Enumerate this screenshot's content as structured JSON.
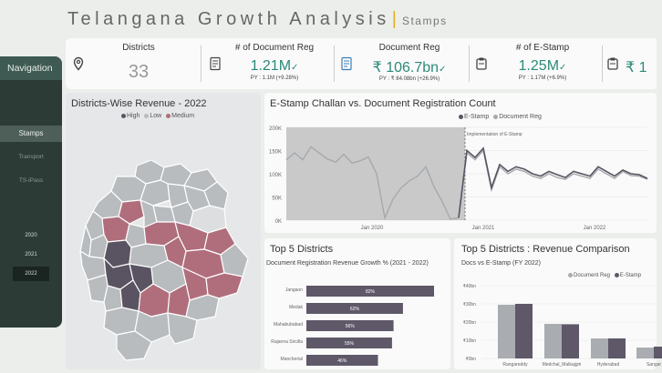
{
  "header": {
    "title": "Telangana Growth Analysis",
    "separator": "|",
    "subtitle": "Stamps"
  },
  "nav": {
    "heading": "Navigation",
    "items": [
      "Stamps",
      "Transport",
      "TS-iPass"
    ],
    "years": [
      "2020",
      "2021",
      "2022"
    ],
    "selected_year": "2022"
  },
  "kpis": [
    {
      "label": "Districts",
      "value": "33",
      "icon": "map-pin-icon"
    },
    {
      "label": "# of Document Reg",
      "value": "1.21M",
      "trend": "✓",
      "py": "PY : 1.1M (+9.28%)",
      "icon": "document-icon"
    },
    {
      "label": "Document Reg",
      "value": "₹ 106.7bn",
      "trend": "✓",
      "py": "PY : ₹ 84.08bn (+26.9%)",
      "icon": "document-rupee-icon"
    },
    {
      "label": "# of E-Stamp",
      "value": "1.25M",
      "trend": "✓",
      "py": "PY : 1.17M (+6.9%)",
      "icon": "stamp-icon"
    },
    {
      "label": "",
      "value": "₹ 1",
      "icon": "stamp-rupee-icon"
    }
  ],
  "map_panel": {
    "title": "Districts-Wise Revenue - 2022",
    "legend": [
      {
        "label": "High",
        "color": "#5a5462"
      },
      {
        "label": "Low",
        "color": "#b8bcbf"
      },
      {
        "label": "Medium",
        "color": "#b06e7c"
      }
    ]
  },
  "line_panel": {
    "title": "E-Stamp Challan vs. Document Registration Count",
    "annotation": "Implementation of E-Stamp",
    "y_ticks": [
      "200K",
      "150K",
      "100K",
      "50K",
      "0K"
    ],
    "x_ticks": [
      "Jan 2020",
      "Jan 2021",
      "Jan 2022"
    ],
    "legend": [
      {
        "label": "E-Stamp",
        "color": "#5a5462"
      },
      {
        "label": "Document Reg",
        "color": "#a5a9ad"
      }
    ]
  },
  "top5_panel": {
    "title": "Top 5 Districts",
    "subtitle": "Document Registration Revenue Growth % (2021 - 2022)"
  },
  "compare_panel": {
    "title": "Top 5 Districts : Revenue Comparison",
    "subtitle": "Docs vs E-Stamp (FY 2022)",
    "legend": [
      {
        "label": "Document Reg",
        "color": "#a9adb1"
      },
      {
        "label": "E-Stamp",
        "color": "#5e5868"
      }
    ]
  },
  "chart_data": [
    {
      "type": "line",
      "title": "E-Stamp Challan vs. Document Registration Count",
      "ylim": [
        0,
        200000
      ],
      "series": [
        {
          "name": "E-Stamp",
          "x": [
            "2021-01",
            "2021-02",
            "2021-03",
            "2021-04",
            "2021-05",
            "2021-06",
            "2021-07",
            "2021-08",
            "2021-09",
            "2021-10",
            "2021-11",
            "2021-12",
            "2022-01",
            "2022-02",
            "2022-03",
            "2022-04",
            "2022-05",
            "2022-06",
            "2022-07",
            "2022-08",
            "2022-09",
            "2022-10",
            "2022-11",
            "2022-12"
          ],
          "values": [
            5000,
            150000,
            135000,
            155000,
            70000,
            120000,
            105000,
            115000,
            110000,
            100000,
            95000,
            105000,
            98000,
            92000,
            105000,
            100000,
            95000,
            115000,
            105000,
            95000,
            108000,
            100000,
            98000,
            90000
          ]
        },
        {
          "name": "Document Reg",
          "x": [
            "2019-04",
            "2019-05",
            "2019-06",
            "2019-07",
            "2019-08",
            "2019-09",
            "2019-10",
            "2019-11",
            "2019-12",
            "2020-01",
            "2020-02",
            "2020-03",
            "2020-04",
            "2020-05",
            "2020-06",
            "2020-07",
            "2020-08",
            "2020-09",
            "2020-10",
            "2020-11",
            "2020-12",
            "2021-01",
            "2021-02",
            "2021-03",
            "2021-04",
            "2021-05",
            "2021-06",
            "2021-07",
            "2021-08",
            "2021-09",
            "2021-10",
            "2021-11",
            "2021-12",
            "2022-01",
            "2022-02",
            "2022-03",
            "2022-04",
            "2022-05",
            "2022-06",
            "2022-07",
            "2022-08",
            "2022-09",
            "2022-10",
            "2022-11",
            "2022-12"
          ],
          "values": [
            130000,
            145000,
            130000,
            158000,
            145000,
            132000,
            125000,
            142000,
            123000,
            128000,
            136000,
            100000,
            5000,
            45000,
            70000,
            85000,
            95000,
            115000,
            72000,
            40000,
            2000,
            5000,
            145000,
            130000,
            150000,
            65000,
            115000,
            100000,
            110000,
            105000,
            95000,
            90000,
            100000,
            92000,
            88000,
            100000,
            95000,
            90000,
            110000,
            100000,
            90000,
            105000,
            96000,
            95000,
            88000
          ]
        }
      ]
    },
    {
      "type": "bar",
      "title": "Top 5 Districts",
      "subtitle": "Document Registration Revenue Growth % (2021 - 2022)",
      "categories": [
        "Jangaon",
        "Medak",
        "Mahabubabad",
        "Rajanna Sircilla",
        "Mancherial"
      ],
      "values": [
        82,
        62,
        56,
        55,
        46
      ],
      "labels": [
        "82%",
        "62%",
        "56%",
        "55%",
        "46%"
      ]
    },
    {
      "type": "bar",
      "title": "Top 5 Districts : Revenue Comparison",
      "subtitle": "Docs vs E-Stamp (FY 2022)",
      "categories": [
        "Rangareddy",
        "Medchal_Malkajgiri",
        "Hyderabad",
        "Sangar"
      ],
      "y_ticks": [
        "₹40bn",
        "₹30bn",
        "₹20bn",
        "₹10bn",
        "₹0bn"
      ],
      "ylim": [
        0,
        40
      ],
      "series": [
        {
          "name": "Document Reg",
          "values": [
            29.5,
            19.0,
            11.0,
            6.0
          ]
        },
        {
          "name": "E-Stamp",
          "values": [
            30.0,
            18.8,
            11.0,
            6.5
          ]
        }
      ]
    }
  ]
}
